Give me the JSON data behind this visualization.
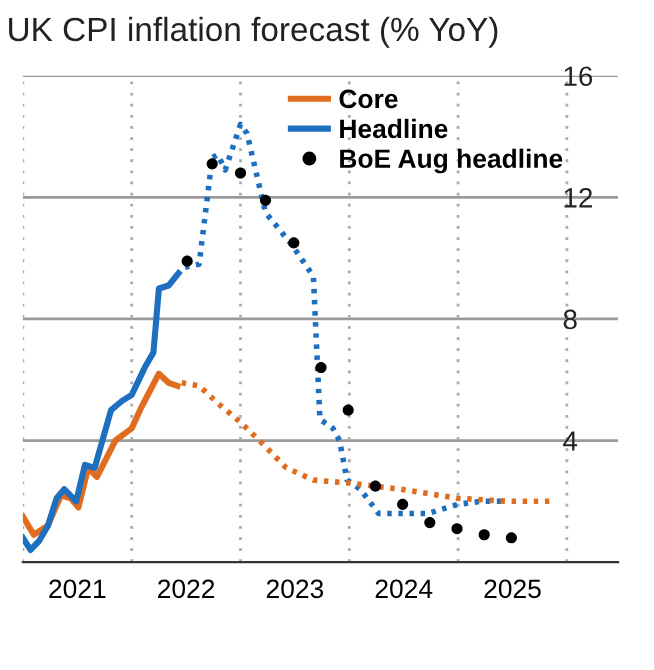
{
  "chart_data": {
    "type": "line",
    "title": "UK CPI inflation forecast (% YoY)",
    "xlim": [
      2021,
      2026.47
    ],
    "ylim": [
      0,
      16
    ],
    "yticks": [
      4,
      8,
      12,
      16
    ],
    "xticks": [
      {
        "value": 2021,
        "label": null
      },
      {
        "value": 2021.5,
        "label": "2021"
      },
      {
        "value": 2022,
        "label": null
      },
      {
        "value": 2022.5,
        "label": "2022"
      },
      {
        "value": 2023,
        "label": null
      },
      {
        "value": 2023.5,
        "label": "2023"
      },
      {
        "value": 2024,
        "label": null
      },
      {
        "value": 2024.5,
        "label": "2024"
      },
      {
        "value": 2025,
        "label": null
      },
      {
        "value": 2025.5,
        "label": "2025"
      },
      {
        "value": 2026,
        "label": null
      }
    ],
    "grid": true,
    "legend": "top right",
    "series": [
      {
        "name": "Core",
        "color": "#e06c1f",
        "line_style": "solid",
        "x": [
          2021.0,
          2021.1,
          2021.23,
          2021.35,
          2021.44,
          2021.51,
          2021.6,
          2021.68,
          2021.85,
          2022.0,
          2022.09,
          2022.25,
          2022.34,
          2022.42
        ],
        "values": [
          1.5,
          0.9,
          1.2,
          2.2,
          2.1,
          1.8,
          3.1,
          2.8,
          4.0,
          4.4,
          5.1,
          6.2,
          5.9,
          5.8
        ]
      },
      {
        "name": "Headline",
        "color": "#1f6fc0",
        "line_style": "solid",
        "x": [
          2021.0,
          2021.07,
          2021.15,
          2021.23,
          2021.31,
          2021.38,
          2021.49,
          2021.57,
          2021.66,
          2021.81,
          2021.91,
          2022.0,
          2022.12,
          2022.2,
          2022.25,
          2022.34,
          2022.43
        ],
        "values": [
          0.8,
          0.4,
          0.7,
          1.2,
          2.1,
          2.4,
          2.0,
          3.2,
          3.1,
          5.0,
          5.3,
          5.5,
          6.4,
          6.9,
          9.0,
          9.1,
          9.5
        ]
      },
      {
        "color": "#1f6fc0",
        "line_style": "dotted",
        "x": [
          2022.49,
          2022.62,
          2022.74,
          2022.79,
          2022.86,
          2023.0,
          2023.06,
          2023.23,
          2023.48,
          2023.67,
          2023.73,
          2023.85,
          2023.91,
          2023.98,
          2024.1,
          2024.27,
          2024.47,
          2024.72,
          2025.0,
          2025.21,
          2025.4
        ],
        "values": [
          9.7,
          9.8,
          13.3,
          13.4,
          12.9,
          14.4,
          14.1,
          11.5,
          10.4,
          9.4,
          4.7,
          4.4,
          4.0,
          2.7,
          2.4,
          1.6,
          1.6,
          1.6,
          1.9,
          2.0,
          2.0
        ]
      },
      {
        "color": "#e06c1f",
        "line_style": "dotted",
        "x": [
          2022.46,
          2022.62,
          2022.8,
          2023.0,
          2023.23,
          2023.42,
          2023.67,
          2024.0,
          2024.47,
          2025.0,
          2025.46,
          2025.89
        ],
        "values": [
          5.9,
          5.8,
          5.2,
          4.6,
          3.8,
          3.1,
          2.7,
          2.6,
          2.4,
          2.1,
          2.0,
          2.0
        ]
      },
      {
        "name": "BoE Aug headline",
        "type": "scatter",
        "color": "#000000",
        "marker": "circle",
        "x": [
          2022.51,
          2022.74,
          2023.0,
          2023.23,
          2023.49,
          2023.74,
          2023.99,
          2024.24,
          2024.49,
          2024.74,
          2024.99,
          2025.24,
          2025.49
        ],
        "values": [
          9.9,
          13.1,
          12.8,
          11.9,
          10.5,
          6.4,
          5.0,
          2.5,
          1.9,
          1.3,
          1.1,
          0.9,
          0.8
        ]
      }
    ]
  }
}
